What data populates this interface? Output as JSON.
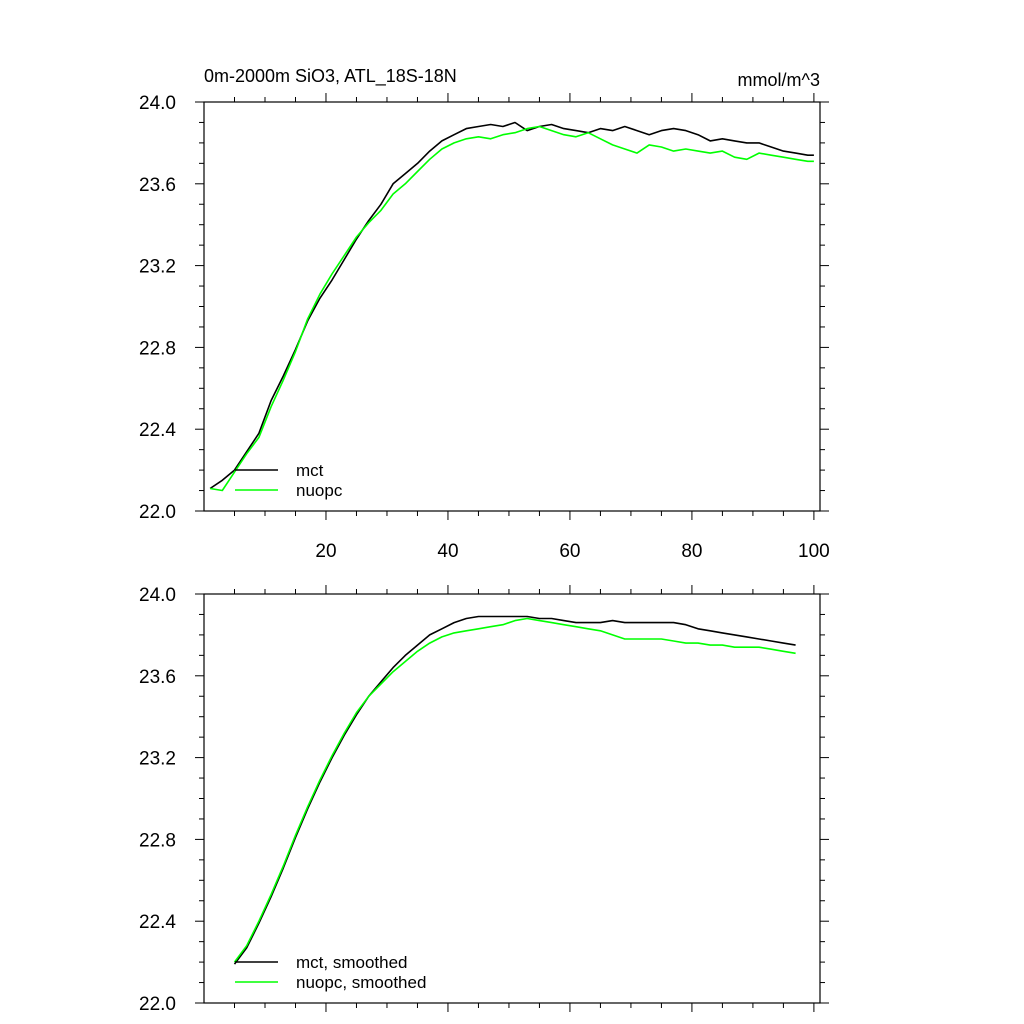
{
  "chart_data": [
    {
      "type": "line",
      "title": "0m-2000m SiO3, ATL_18S-18N",
      "units": "mmol/m^3",
      "xlim": [
        0,
        101
      ],
      "ylim": [
        22.0,
        24.0
      ],
      "xticks": [
        20,
        40,
        60,
        80,
        100
      ],
      "yticks": [
        22.0,
        22.4,
        22.8,
        23.2,
        23.6,
        24.0
      ],
      "ytick_labels": [
        "22.0",
        "22.4",
        "22.8",
        "23.2",
        "23.6",
        "24.0"
      ],
      "xtick_labels": [
        "20",
        "40",
        "60",
        "80",
        "100"
      ],
      "legend_position": "bottom-left",
      "grid": false,
      "series": [
        {
          "name": "mct",
          "color": "#000000",
          "x": [
            1,
            3,
            5,
            7,
            9,
            11,
            13,
            15,
            17,
            19,
            21,
            23,
            25,
            27,
            29,
            31,
            33,
            35,
            37,
            39,
            41,
            43,
            45,
            47,
            49,
            51,
            53,
            55,
            57,
            59,
            61,
            63,
            65,
            67,
            69,
            71,
            73,
            75,
            77,
            79,
            81,
            83,
            85,
            87,
            89,
            91,
            93,
            95,
            97,
            99,
            100
          ],
          "y": [
            22.11,
            22.15,
            22.2,
            22.29,
            22.38,
            22.54,
            22.66,
            22.79,
            22.93,
            23.04,
            23.13,
            23.23,
            23.33,
            23.42,
            23.5,
            23.6,
            23.65,
            23.7,
            23.76,
            23.81,
            23.84,
            23.87,
            23.88,
            23.89,
            23.88,
            23.9,
            23.86,
            23.88,
            23.89,
            23.87,
            23.86,
            23.85,
            23.87,
            23.86,
            23.88,
            23.86,
            23.84,
            23.86,
            23.87,
            23.86,
            23.84,
            23.81,
            23.82,
            23.81,
            23.8,
            23.8,
            23.78,
            23.76,
            23.75,
            23.74,
            23.74
          ]
        },
        {
          "name": "nuopc",
          "color": "#00ff00",
          "x": [
            1,
            3,
            5,
            7,
            9,
            11,
            13,
            15,
            17,
            19,
            21,
            23,
            25,
            27,
            29,
            31,
            33,
            35,
            37,
            39,
            41,
            43,
            45,
            47,
            49,
            51,
            53,
            55,
            57,
            59,
            61,
            63,
            65,
            67,
            69,
            71,
            73,
            75,
            77,
            79,
            81,
            83,
            85,
            87,
            89,
            91,
            93,
            95,
            97,
            99,
            100
          ],
          "y": [
            22.11,
            22.1,
            22.19,
            22.28,
            22.36,
            22.51,
            22.64,
            22.78,
            22.94,
            23.06,
            23.16,
            23.25,
            23.34,
            23.41,
            23.47,
            23.55,
            23.6,
            23.66,
            23.72,
            23.77,
            23.8,
            23.82,
            23.83,
            23.82,
            23.84,
            23.85,
            23.87,
            23.88,
            23.86,
            23.84,
            23.83,
            23.85,
            23.82,
            23.79,
            23.77,
            23.75,
            23.79,
            23.78,
            23.76,
            23.77,
            23.76,
            23.75,
            23.76,
            23.73,
            23.72,
            23.75,
            23.74,
            23.73,
            23.72,
            23.71,
            23.71
          ]
        }
      ]
    },
    {
      "type": "line",
      "title": "",
      "xlim": [
        0,
        101
      ],
      "ylim": [
        22.0,
        24.0
      ],
      "yticks": [
        22.0,
        22.4,
        22.8,
        23.2,
        23.6,
        24.0
      ],
      "ytick_labels": [
        "22.0",
        "22.4",
        "22.8",
        "23.2",
        "23.6",
        "24.0"
      ],
      "legend_position": "bottom-left",
      "grid": false,
      "series": [
        {
          "name": "mct, smoothed",
          "color": "#000000",
          "x": [
            5,
            7,
            9,
            11,
            13,
            15,
            17,
            19,
            21,
            23,
            25,
            27,
            29,
            31,
            33,
            35,
            37,
            39,
            41,
            43,
            45,
            47,
            49,
            51,
            53,
            55,
            57,
            59,
            61,
            63,
            65,
            67,
            69,
            71,
            73,
            75,
            77,
            79,
            81,
            83,
            85,
            87,
            89,
            91,
            93,
            95,
            97
          ],
          "y": [
            22.19,
            22.27,
            22.39,
            22.52,
            22.66,
            22.81,
            22.95,
            23.08,
            23.2,
            23.31,
            23.41,
            23.5,
            23.57,
            23.64,
            23.7,
            23.75,
            23.8,
            23.83,
            23.86,
            23.88,
            23.89,
            23.89,
            23.89,
            23.89,
            23.89,
            23.88,
            23.88,
            23.87,
            23.86,
            23.86,
            23.86,
            23.87,
            23.86,
            23.86,
            23.86,
            23.86,
            23.86,
            23.85,
            23.83,
            23.82,
            23.81,
            23.8,
            23.79,
            23.78,
            23.77,
            23.76,
            23.75
          ]
        },
        {
          "name": "nuopc, smoothed",
          "color": "#00ff00",
          "x": [
            5,
            7,
            9,
            11,
            13,
            15,
            17,
            19,
            21,
            23,
            25,
            27,
            29,
            31,
            33,
            35,
            37,
            39,
            41,
            43,
            45,
            47,
            49,
            51,
            53,
            55,
            57,
            59,
            61,
            63,
            65,
            67,
            69,
            71,
            73,
            75,
            77,
            79,
            81,
            83,
            85,
            87,
            89,
            91,
            93,
            95,
            97
          ],
          "y": [
            22.2,
            22.28,
            22.4,
            22.53,
            22.67,
            22.82,
            22.96,
            23.09,
            23.21,
            23.32,
            23.42,
            23.5,
            23.56,
            23.62,
            23.67,
            23.72,
            23.76,
            23.79,
            23.81,
            23.82,
            23.83,
            23.84,
            23.85,
            23.87,
            23.88,
            23.87,
            23.86,
            23.85,
            23.84,
            23.83,
            23.82,
            23.8,
            23.78,
            23.78,
            23.78,
            23.78,
            23.77,
            23.76,
            23.76,
            23.75,
            23.75,
            23.74,
            23.74,
            23.74,
            23.73,
            23.72,
            23.71
          ]
        }
      ]
    }
  ]
}
